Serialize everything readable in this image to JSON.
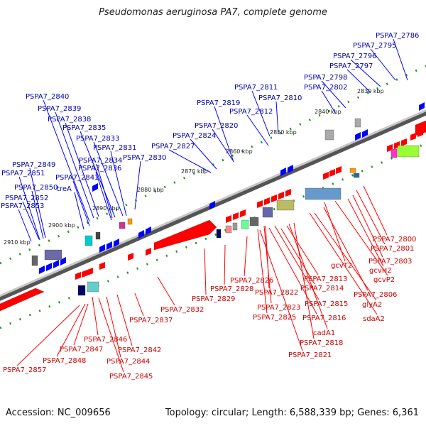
{
  "title": "Pseudomonas aeruginosa PA7, complete genome",
  "footer": {
    "accession": "Accession: NC_009656",
    "summary": "Topology: circular; Length: 6,588,339 bp; Genes: 6,361"
  },
  "colors": {
    "forward": "#ff0000",
    "reverse": "#0000ff",
    "forward_label": "#cc0000",
    "reverse_label": "#0000aa",
    "backbone": "#888888",
    "tick_green": "#1a9a1a"
  },
  "ticks": [
    {
      "label": "2830 kbp"
    },
    {
      "label": "2840 kbp"
    },
    {
      "label": "2850 kbp"
    },
    {
      "label": "2860 kbp"
    },
    {
      "label": "2870 kbp"
    },
    {
      "label": "2880 kbp"
    },
    {
      "label": "2890 kbp"
    },
    {
      "label": "2900 kbp"
    },
    {
      "label": "2910 kbp"
    }
  ],
  "reverse_genes": [
    "PSPA7_2786",
    "PSPA7_2795",
    "PSPA7_2796",
    "PSPA7_2797",
    "PSPA7_2798",
    "PSPA7_2802",
    "PSPA7_2810",
    "PSPA7_2811",
    "PSPA7_2812",
    "PSPA7_2819",
    "PSPA7_2820",
    "PSPA7_2824",
    "PSPA7_2827",
    "PSPA7_2830",
    "PSPA7_2831",
    "PSPA7_2833",
    "PSPA7_2834",
    "PSPA7_2835",
    "PSPA7_2836",
    "PSPA7_2838",
    "PSPA7_2839",
    "PSPA7_2840",
    "PSPA7_2841",
    "treA",
    "PSPA7_2849",
    "PSPA7_2850",
    "PSPA7_2851",
    "PSPA7_2852",
    "PSPA7_2853"
  ],
  "forward_genes": [
    "PSPA7_2800",
    "PSPA7_2801",
    "PSPA7_2803",
    "gcvT2",
    "gcvH2",
    "gcvP2",
    "PSPA7_2806",
    "glyA2",
    "sdaA2",
    "PSPA7_2813",
    "PSPA7_2814",
    "PSPA7_2815",
    "PSPA7_2816",
    "cadA1",
    "PSPA7_2818",
    "PSPA7_2821",
    "PSPA7_2822",
    "PSPA7_2823",
    "PSPA7_2825",
    "PSPA7_2826",
    "PSPA7_2828",
    "PSPA7_2829",
    "PSPA7_2832",
    "PSPA7_2837",
    "PSPA7_2842",
    "PSPA7_2844",
    "PSPA7_2845",
    "PSPA7_2846",
    "PSPA7_2847",
    "PSPA7_2848",
    "PSPA7_2857"
  ]
}
